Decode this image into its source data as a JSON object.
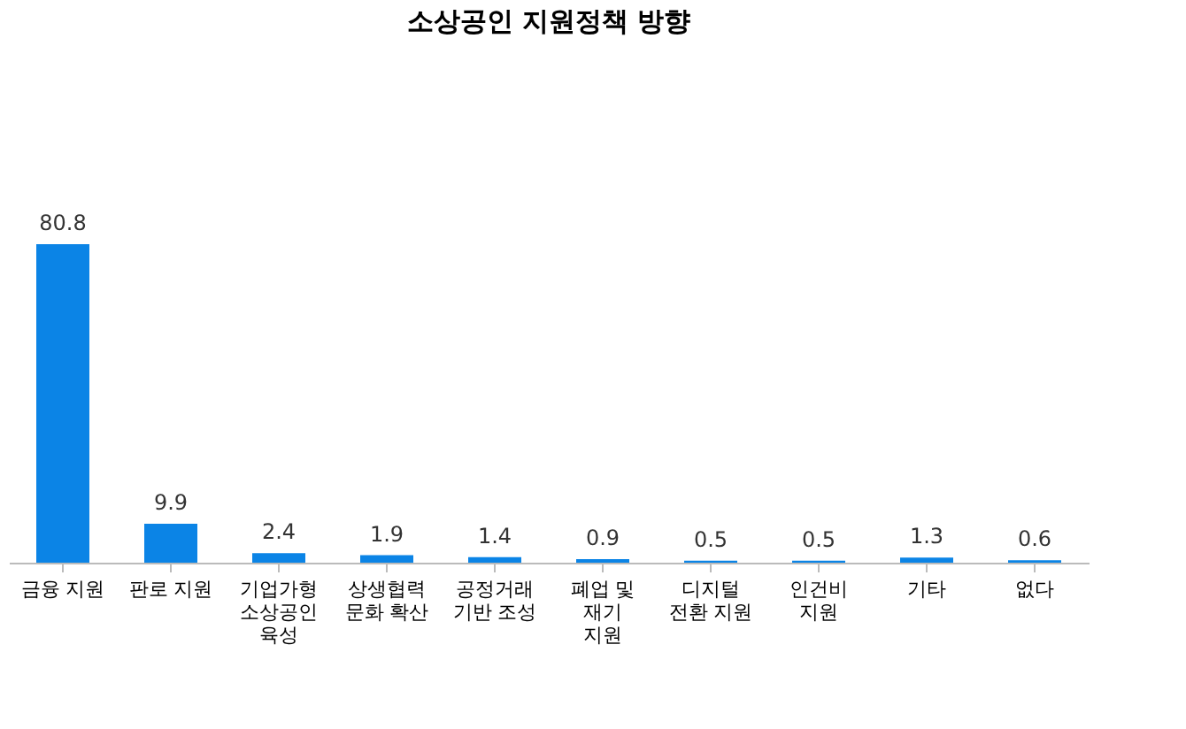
{
  "chart_data": {
    "type": "bar",
    "title": "소상공인 지원정책 방향",
    "categories": [
      "금융 지원",
      "판로 지원",
      "기업가형\n소상공인\n육성",
      "상생협력\n문화 확산",
      "공정거래\n기반 조성",
      "폐업 및\n재기\n지원",
      "디지털\n전환 지원",
      "인건비\n지원",
      "기타",
      "없다"
    ],
    "values": [
      80.8,
      9.9,
      2.4,
      1.9,
      1.4,
      0.9,
      0.5,
      0.5,
      1.3,
      0.6
    ],
    "color": "#0b84e6",
    "data_labels": true
  }
}
